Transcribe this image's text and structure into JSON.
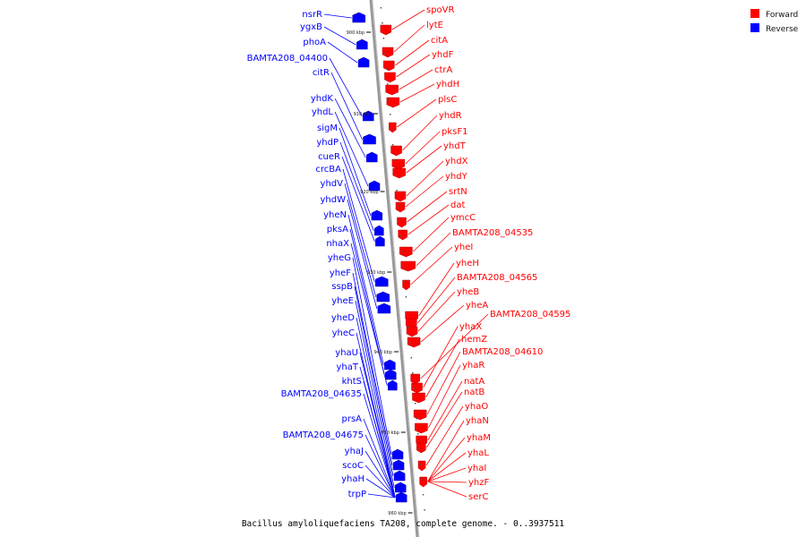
{
  "caption": "Bacillus amyloliquefaciens TA208, complete genome. - 0..3937511",
  "legend": [
    {
      "label": "Forward",
      "color": "#ff0000"
    },
    {
      "label": "Reverse",
      "color": "#0000ff"
    }
  ],
  "colors": {
    "forward": "#ff0000",
    "reverse": "#0000ff",
    "backbone": "#999999"
  },
  "ticks": [
    "900 kbp",
    "910 kbp",
    "920 kbp",
    "930 kbp",
    "940 kbp",
    "950 kbp",
    "960 kbp"
  ],
  "forward_genes": [
    "spoVR",
    "lytE",
    "citA",
    "yhdF",
    "ctrA",
    "yhdH",
    "plsC",
    "yhdR",
    "pksF1",
    "yhdT",
    "yhdX",
    "yhdY",
    "srtN",
    "dat",
    "ymcC",
    "BAMTA208_04535",
    "yheI",
    "yheH",
    "BAMTA208_04565",
    "yheB",
    "yheA",
    "BAMTA208_04595",
    "yhaX",
    "hemZ",
    "BAMTA208_04610",
    "yhaR",
    "natA",
    "natB",
    "yhaO",
    "yhaN",
    "yhaM",
    "yhaL",
    "yhaI",
    "yhzF",
    "serC"
  ],
  "reverse_genes": [
    "nsrR",
    "ygxB",
    "phoA",
    "BAMTA208_04400",
    "citR",
    "yhdK",
    "yhdL",
    "sigM",
    "yhdP",
    "cueR",
    "crcBA",
    "yhdV",
    "yhdW",
    "yheN",
    "pksA",
    "nhaX",
    "yheG",
    "yheF",
    "sspB",
    "yheE",
    "yheD",
    "yheC",
    "yhaU",
    "yhaT",
    "khtS",
    "BAMTA208_04635",
    "prsA",
    "BAMTA208_04675",
    "yhaJ",
    "scoC",
    "yhaH",
    "trpP"
  ]
}
